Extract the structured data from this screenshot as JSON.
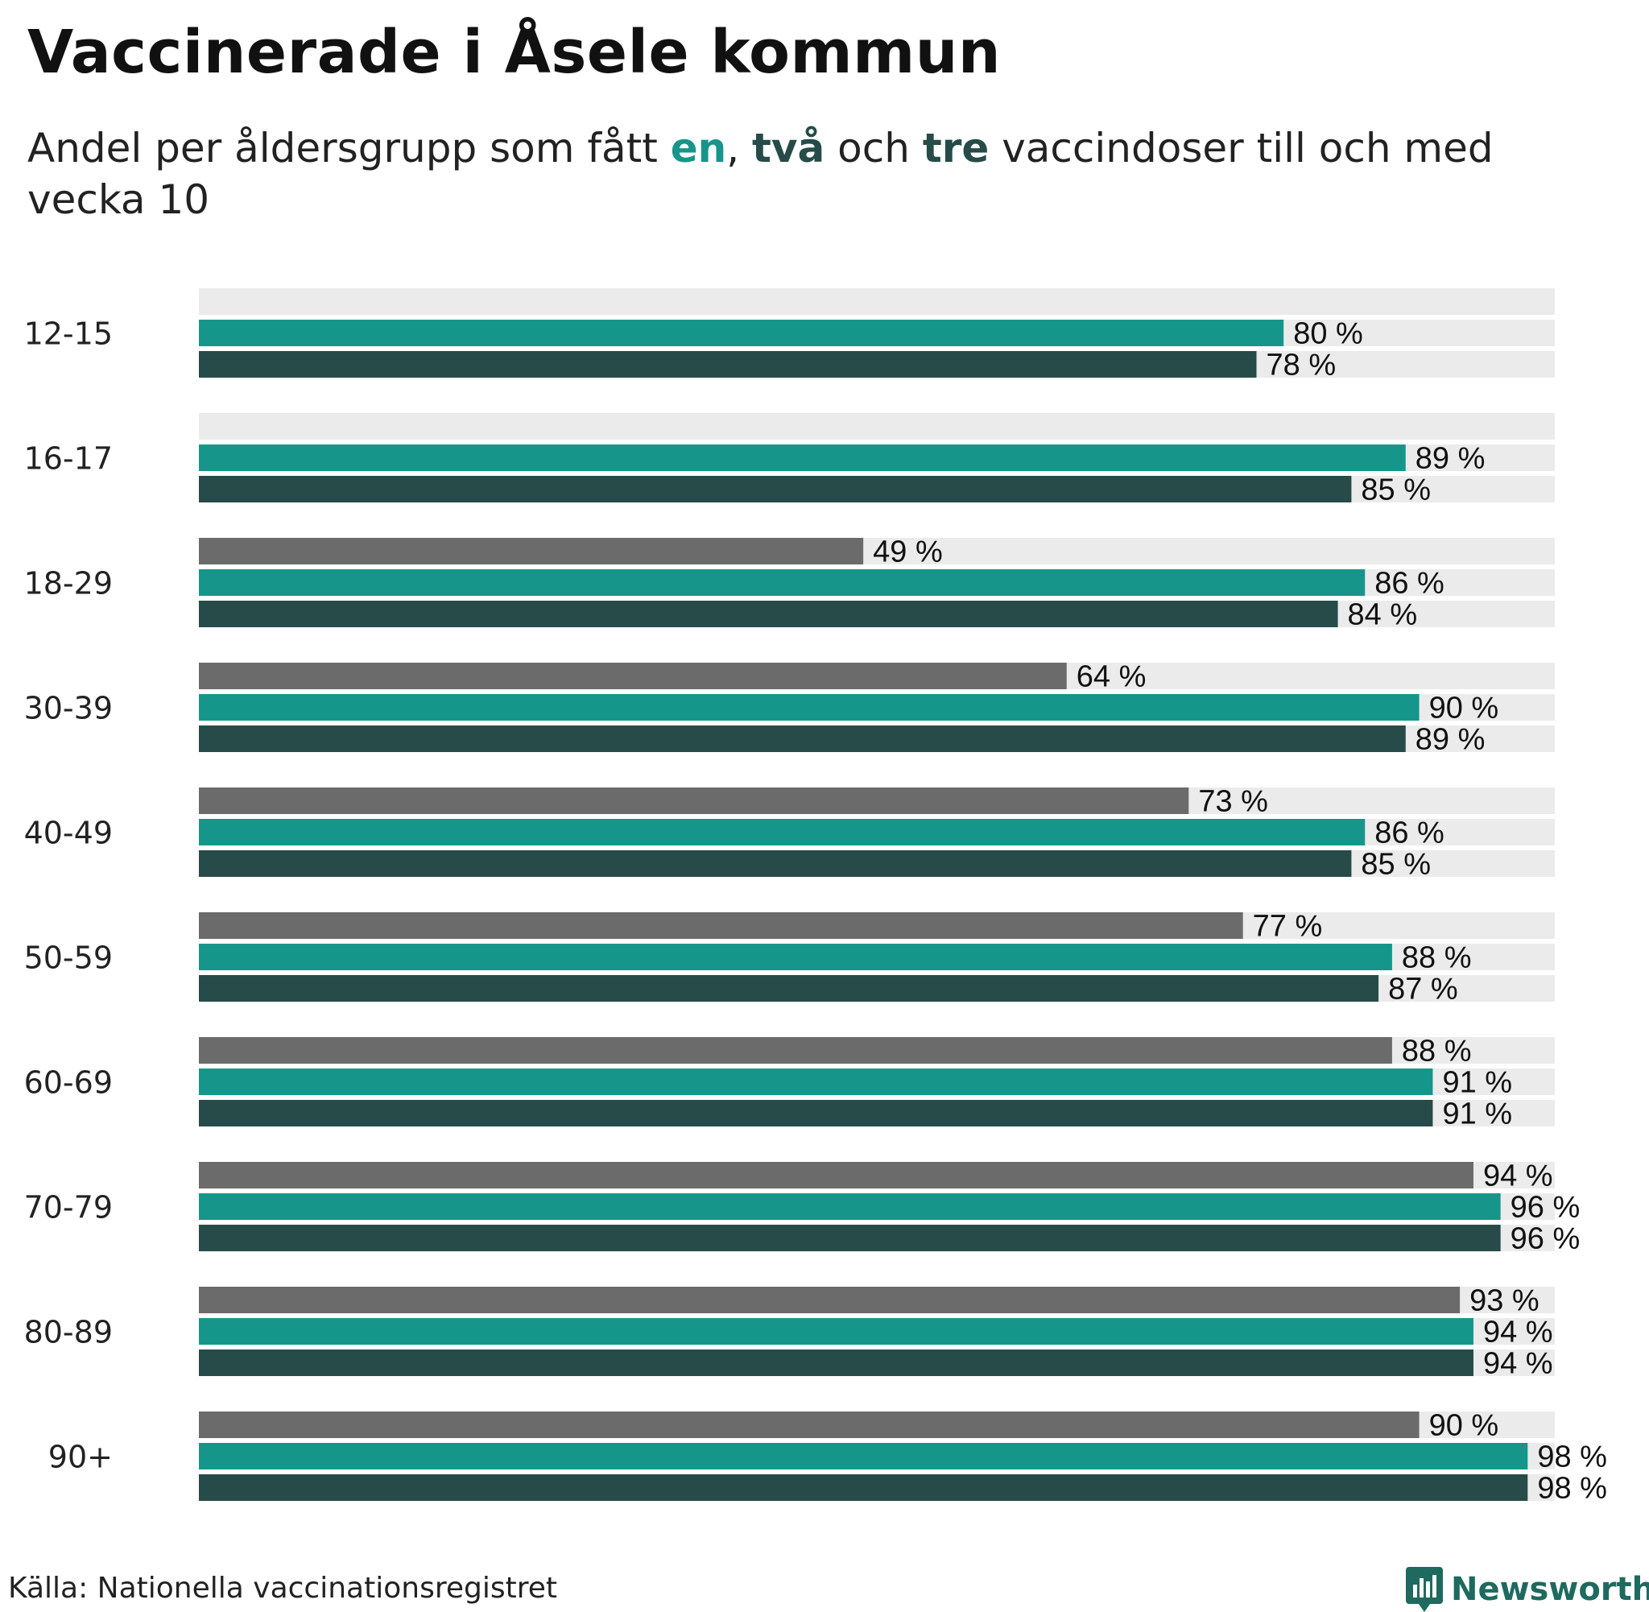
{
  "title": "Vaccinerade i Åsele kommun",
  "subtitle": {
    "before": "Andel per åldersgrupp som fått ",
    "w1": "en",
    "sep1": ", ",
    "w2": "två",
    "sep2": " och ",
    "w3": "tre",
    "after": " vaccindoser till och med vecka 10"
  },
  "colors": {
    "dose1": "#16968a",
    "dose2": "#264b48",
    "dose3": "#6b6b6b",
    "track": "#ebebeb",
    "brand": "#1e6a5f"
  },
  "chart_data": {
    "type": "bar",
    "orientation": "horizontal",
    "unit": "%",
    "xlim": [
      0,
      100
    ],
    "categories": [
      "12-15",
      "16-17",
      "18-29",
      "30-39",
      "40-49",
      "50-59",
      "60-69",
      "70-79",
      "80-89",
      "90+"
    ],
    "series": [
      {
        "name": "tre",
        "color": "#6b6b6b",
        "values": [
          null,
          null,
          49,
          64,
          73,
          77,
          88,
          94,
          93,
          90
        ]
      },
      {
        "name": "en",
        "color": "#16968a",
        "values": [
          80,
          89,
          86,
          90,
          86,
          88,
          91,
          96,
          94,
          98
        ]
      },
      {
        "name": "två",
        "color": "#264b48",
        "values": [
          78,
          85,
          84,
          89,
          85,
          87,
          91,
          96,
          94,
          98
        ]
      }
    ]
  },
  "footer": {
    "source": "Källa: Nationella vaccinationsregistret",
    "brand": "Newsworthy",
    "brand_icon": "newsworthy-logo-icon"
  }
}
